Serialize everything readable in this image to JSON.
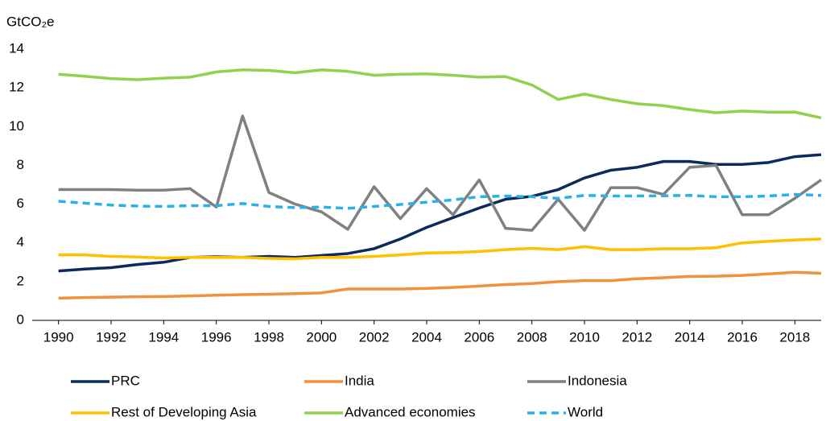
{
  "chart_data": {
    "type": "line",
    "y_label": "GtCO₂e",
    "x": [
      1990,
      1991,
      1992,
      1993,
      1994,
      1995,
      1996,
      1997,
      1998,
      1999,
      2000,
      2001,
      2002,
      2003,
      2004,
      2005,
      2006,
      2007,
      2008,
      2009,
      2010,
      2011,
      2012,
      2013,
      2014,
      2015,
      2016,
      2017,
      2018,
      2019
    ],
    "xlim": [
      1989,
      2019
    ],
    "xticks": [
      1990,
      1992,
      1994,
      1996,
      1998,
      2000,
      2002,
      2004,
      2006,
      2008,
      2010,
      2012,
      2014,
      2016,
      2018
    ],
    "ylim": [
      0,
      14
    ],
    "yticks": [
      0,
      2,
      4,
      6,
      8,
      10,
      12,
      14
    ],
    "grid": false,
    "legend": "bottom",
    "series": [
      {
        "name": "PRC",
        "color": "#0c2a5b",
        "style": "solid",
        "values": [
          2.55,
          2.65,
          2.72,
          2.88,
          3.0,
          3.25,
          3.28,
          3.25,
          3.3,
          3.25,
          3.35,
          3.45,
          3.7,
          4.2,
          4.8,
          5.3,
          5.8,
          6.25,
          6.4,
          6.75,
          7.35,
          7.75,
          7.9,
          8.2,
          8.2,
          8.05,
          8.05,
          8.15,
          8.45,
          8.55
        ]
      },
      {
        "name": "India",
        "color": "#f0913d",
        "style": "solid",
        "values": [
          1.15,
          1.18,
          1.2,
          1.22,
          1.23,
          1.26,
          1.3,
          1.33,
          1.35,
          1.38,
          1.42,
          1.62,
          1.62,
          1.62,
          1.65,
          1.7,
          1.77,
          1.85,
          1.9,
          2.0,
          2.05,
          2.05,
          2.15,
          2.2,
          2.27,
          2.28,
          2.32,
          2.4,
          2.48,
          2.43
        ]
      },
      {
        "name": "Indonesia",
        "color": "#808080",
        "style": "solid",
        "values": [
          6.75,
          6.75,
          6.75,
          6.72,
          6.72,
          6.8,
          5.85,
          10.55,
          6.6,
          6.0,
          5.6,
          4.7,
          6.9,
          5.25,
          6.8,
          5.45,
          7.25,
          4.75,
          4.65,
          6.25,
          4.65,
          6.85,
          6.85,
          6.5,
          7.9,
          8.0,
          5.45,
          5.45,
          6.3,
          7.25
        ]
      },
      {
        "name": "Rest of Developing Asia",
        "color": "#ffc000",
        "style": "solid",
        "values": [
          3.38,
          3.38,
          3.3,
          3.27,
          3.22,
          3.25,
          3.25,
          3.25,
          3.2,
          3.18,
          3.25,
          3.25,
          3.3,
          3.38,
          3.48,
          3.5,
          3.55,
          3.65,
          3.72,
          3.65,
          3.8,
          3.65,
          3.65,
          3.7,
          3.7,
          3.75,
          4.0,
          4.08,
          4.15,
          4.2
        ]
      },
      {
        "name": "Advanced economies",
        "color": "#92d050",
        "style": "solid",
        "values": [
          12.7,
          12.6,
          12.48,
          12.42,
          12.5,
          12.55,
          12.82,
          12.93,
          12.9,
          12.78,
          12.93,
          12.85,
          12.65,
          12.7,
          12.72,
          12.65,
          12.55,
          12.58,
          12.15,
          11.4,
          11.68,
          11.4,
          11.18,
          11.08,
          10.88,
          10.72,
          10.8,
          10.75,
          10.75,
          10.45
        ]
      },
      {
        "name": "World",
        "color": "#2ab2e8",
        "style": "dashed",
        "values": [
          6.15,
          6.05,
          5.95,
          5.9,
          5.88,
          5.92,
          5.92,
          6.03,
          5.88,
          5.82,
          5.85,
          5.78,
          5.88,
          5.98,
          6.1,
          6.22,
          6.38,
          6.42,
          6.38,
          6.3,
          6.45,
          6.42,
          6.42,
          6.43,
          6.45,
          6.38,
          6.38,
          6.42,
          6.5,
          6.45
        ]
      }
    ]
  }
}
